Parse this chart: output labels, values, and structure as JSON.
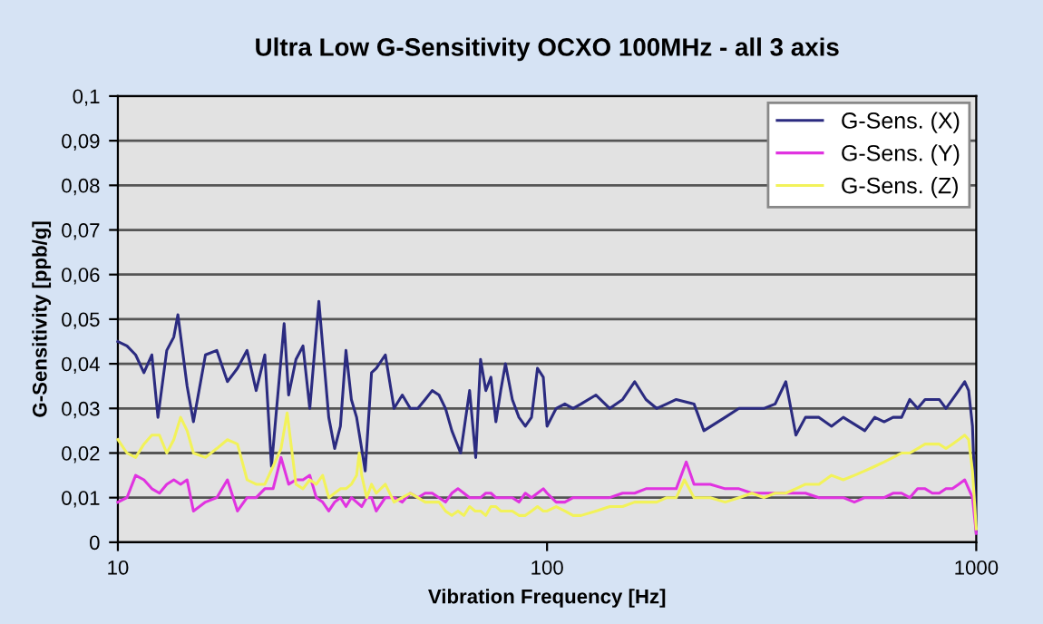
{
  "chart_data": {
    "type": "line",
    "title": "Ultra Low G-Sensitivity OCXO 100MHz - all 3 axis",
    "xlabel": "Vibration Frequency [Hz]",
    "ylabel": "G-Sensitivity [ppb/g]",
    "log": "x",
    "xlim": [
      10,
      1000
    ],
    "xticks": [
      10,
      100,
      1000
    ],
    "ylim": [
      0,
      0.1
    ],
    "yticks": [
      {
        "value": 0,
        "label": "0"
      },
      {
        "value": 0.01,
        "label": "0,01"
      },
      {
        "value": 0.02,
        "label": "0,02"
      },
      {
        "value": 0.03,
        "label": "0,03"
      },
      {
        "value": 0.04,
        "label": "0,04"
      },
      {
        "value": 0.05,
        "label": "0,05"
      },
      {
        "value": 0.06,
        "label": "0,06"
      },
      {
        "value": 0.07,
        "label": "0,07"
      },
      {
        "value": 0.08,
        "label": "0,08"
      },
      {
        "value": 0.09,
        "label": "0,09"
      },
      {
        "value": 0.1,
        "label": "0,1"
      }
    ],
    "grid": "y",
    "legend": "top right",
    "marker": "none",
    "line_style": "solid",
    "series": [
      {
        "name": "G-Sens. (X)",
        "color": "#2b2b80",
        "x": [
          10,
          10.5,
          11,
          11.5,
          12,
          12.4,
          13,
          13.5,
          13.8,
          14.5,
          15,
          16,
          17,
          18,
          19,
          20,
          21,
          22,
          22.8,
          24.4,
          25,
          26,
          27,
          28,
          29.4,
          31,
          32,
          33,
          34,
          35,
          36,
          37.7,
          39,
          40,
          42,
          44,
          46,
          48,
          50,
          52,
          54,
          56,
          58,
          60,
          62.9,
          66,
          68.2,
          70,
          72,
          74,
          76,
          78,
          80,
          83,
          86,
          89,
          92,
          95,
          98,
          100,
          105,
          110,
          115,
          120,
          130,
          140,
          150,
          160,
          170,
          180,
          190,
          200,
          220,
          232,
          260,
          280,
          300,
          320,
          340,
          360,
          380,
          400,
          430,
          460,
          490,
          550,
          580,
          610,
          640,
          670,
          700,
          730,
          760,
          790,
          820,
          850,
          880,
          910,
          940,
          960,
          980,
          1000
        ],
        "values": [
          0.045,
          0.044,
          0.042,
          0.038,
          0.042,
          0.028,
          0.043,
          0.046,
          0.051,
          0.035,
          0.027,
          0.042,
          0.043,
          0.036,
          0.039,
          0.043,
          0.034,
          0.042,
          0.017,
          0.049,
          0.033,
          0.041,
          0.044,
          0.03,
          0.054,
          0.028,
          0.021,
          0.026,
          0.043,
          0.032,
          0.028,
          0.016,
          0.038,
          0.039,
          0.042,
          0.03,
          0.033,
          0.03,
          0.03,
          0.032,
          0.034,
          0.033,
          0.03,
          0.025,
          0.02,
          0.034,
          0.019,
          0.041,
          0.034,
          0.037,
          0.027,
          0.034,
          0.04,
          0.032,
          0.028,
          0.026,
          0.028,
          0.039,
          0.037,
          0.026,
          0.03,
          0.031,
          0.03,
          0.031,
          0.033,
          0.03,
          0.032,
          0.036,
          0.032,
          0.03,
          0.031,
          0.032,
          0.031,
          0.025,
          0.028,
          0.03,
          0.03,
          0.03,
          0.031,
          0.036,
          0.024,
          0.028,
          0.028,
          0.026,
          0.028,
          0.025,
          0.028,
          0.027,
          0.028,
          0.028,
          0.032,
          0.03,
          0.032,
          0.032,
          0.032,
          0.03,
          0.032,
          0.034,
          0.036,
          0.034,
          0.026,
          0.002
        ]
      },
      {
        "name": "G-Sens. (Y)",
        "color": "#e033e0",
        "x": [
          10,
          10.5,
          11,
          11.5,
          12,
          12.5,
          13,
          13.5,
          14,
          14.5,
          15,
          16,
          17,
          18,
          19,
          20,
          21,
          22,
          23,
          24,
          25,
          26,
          27,
          28,
          29,
          30,
          31,
          32,
          33,
          34,
          35,
          36,
          37,
          38,
          39,
          40,
          42,
          44,
          46,
          48,
          50,
          52,
          54,
          56,
          58,
          60,
          62,
          64,
          66,
          68,
          70,
          72,
          74,
          76,
          78,
          80,
          83,
          86,
          89,
          92,
          95,
          98,
          100,
          105,
          110,
          115,
          120,
          130,
          140,
          150,
          160,
          170,
          180,
          190,
          200,
          211,
          220,
          240,
          260,
          280,
          300,
          320,
          340,
          360,
          380,
          400,
          430,
          460,
          490,
          520,
          550,
          580,
          610,
          640,
          670,
          700,
          730,
          760,
          790,
          820,
          850,
          880,
          910,
          940,
          960,
          980,
          1000
        ],
        "values": [
          0.009,
          0.01,
          0.015,
          0.014,
          0.012,
          0.011,
          0.013,
          0.014,
          0.013,
          0.014,
          0.007,
          0.009,
          0.01,
          0.014,
          0.007,
          0.01,
          0.01,
          0.012,
          0.012,
          0.019,
          0.013,
          0.014,
          0.014,
          0.015,
          0.01,
          0.009,
          0.007,
          0.009,
          0.01,
          0.008,
          0.01,
          0.009,
          0.008,
          0.01,
          0.01,
          0.007,
          0.01,
          0.01,
          0.009,
          0.011,
          0.01,
          0.011,
          0.011,
          0.01,
          0.009,
          0.011,
          0.012,
          0.011,
          0.01,
          0.01,
          0.01,
          0.011,
          0.011,
          0.01,
          0.01,
          0.01,
          0.01,
          0.009,
          0.011,
          0.01,
          0.011,
          0.012,
          0.011,
          0.009,
          0.009,
          0.01,
          0.01,
          0.01,
          0.01,
          0.011,
          0.011,
          0.012,
          0.012,
          0.012,
          0.012,
          0.018,
          0.013,
          0.013,
          0.012,
          0.012,
          0.011,
          0.011,
          0.011,
          0.011,
          0.011,
          0.011,
          0.01,
          0.01,
          0.01,
          0.009,
          0.01,
          0.01,
          0.01,
          0.011,
          0.011,
          0.01,
          0.012,
          0.012,
          0.011,
          0.011,
          0.012,
          0.012,
          0.013,
          0.014,
          0.012,
          0.01,
          0.002
        ]
      },
      {
        "name": "G-Sens. (Z)",
        "color": "#f2f25a",
        "x": [
          10,
          10.5,
          11,
          11.5,
          12,
          12.5,
          13,
          13.5,
          14,
          14.5,
          15,
          16,
          17,
          18,
          19,
          20,
          21,
          22,
          23,
          24,
          24.8,
          26,
          27,
          28,
          29,
          30,
          31,
          32,
          33,
          34,
          35,
          36,
          36.5,
          37,
          38,
          39,
          40,
          42,
          44,
          46,
          48,
          50,
          52,
          54,
          56,
          58,
          60,
          62,
          64,
          66,
          68,
          70,
          72,
          74,
          76,
          78,
          80,
          83,
          86,
          89,
          92,
          95,
          98,
          100,
          105,
          110,
          115,
          120,
          130,
          140,
          150,
          160,
          170,
          180,
          190,
          200,
          209,
          220,
          240,
          260,
          280,
          300,
          320,
          340,
          360,
          380,
          400,
          430,
          460,
          490,
          520,
          550,
          580,
          610,
          640,
          670,
          700,
          730,
          760,
          790,
          820,
          850,
          880,
          910,
          940,
          960,
          980,
          1000
        ],
        "values": [
          0.023,
          0.02,
          0.019,
          0.022,
          0.024,
          0.024,
          0.02,
          0.023,
          0.028,
          0.025,
          0.02,
          0.019,
          0.021,
          0.023,
          0.022,
          0.014,
          0.013,
          0.013,
          0.017,
          0.021,
          0.029,
          0.013,
          0.012,
          0.014,
          0.013,
          0.015,
          0.01,
          0.011,
          0.012,
          0.012,
          0.013,
          0.015,
          0.02,
          0.015,
          0.01,
          0.013,
          0.011,
          0.013,
          0.009,
          0.01,
          0.011,
          0.01,
          0.009,
          0.009,
          0.009,
          0.007,
          0.006,
          0.007,
          0.006,
          0.008,
          0.007,
          0.007,
          0.006,
          0.008,
          0.008,
          0.007,
          0.007,
          0.007,
          0.006,
          0.006,
          0.007,
          0.008,
          0.007,
          0.007,
          0.008,
          0.007,
          0.006,
          0.006,
          0.007,
          0.008,
          0.008,
          0.009,
          0.009,
          0.009,
          0.01,
          0.01,
          0.014,
          0.01,
          0.01,
          0.009,
          0.01,
          0.011,
          0.01,
          0.011,
          0.011,
          0.012,
          0.013,
          0.013,
          0.015,
          0.014,
          0.015,
          0.016,
          0.017,
          0.018,
          0.019,
          0.02,
          0.02,
          0.021,
          0.022,
          0.022,
          0.022,
          0.021,
          0.022,
          0.023,
          0.024,
          0.023,
          0.016,
          0.003
        ]
      }
    ]
  }
}
